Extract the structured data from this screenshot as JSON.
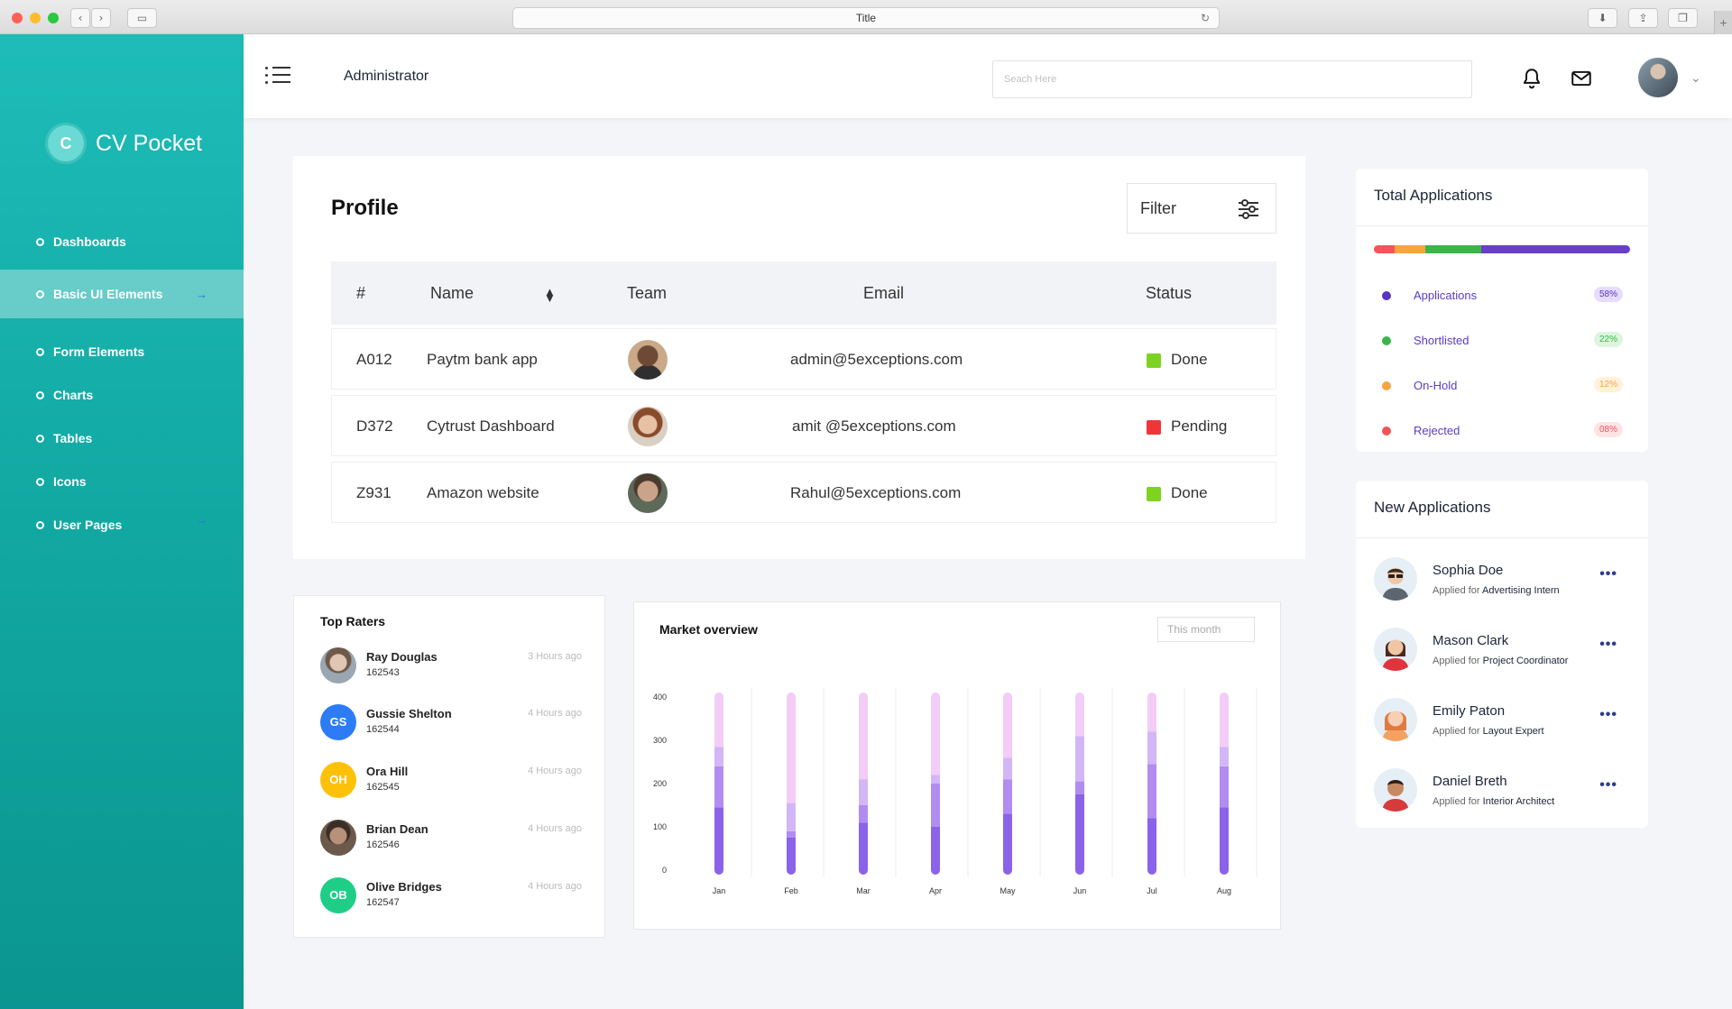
{
  "browser": {
    "title": "Title"
  },
  "sidebar": {
    "brand_letter": "C",
    "brand_name": "CV Pocket",
    "items": [
      {
        "label": "Dashboards"
      },
      {
        "label": "Basic UI Elements"
      },
      {
        "label": "Form Elements"
      },
      {
        "label": "Charts"
      },
      {
        "label": "Tables"
      },
      {
        "label": "Icons"
      },
      {
        "label": "User Pages"
      }
    ]
  },
  "header": {
    "title": "Administrator",
    "search_placeholder": "Seach Here"
  },
  "profile": {
    "title": "Profile",
    "filter_label": "Filter",
    "columns": [
      "#",
      "Name",
      "Team",
      "Email",
      "Status"
    ],
    "rows": [
      {
        "id": "A012",
        "name": "Paytm bank app",
        "email": "admin@5exceptions.com",
        "status": "Done",
        "status_color": "#7ed321"
      },
      {
        "id": "D372",
        "name": "Cytrust Dashboard",
        "email": "amit @5exceptions.com",
        "status": "Pending",
        "status_color": "#f0353a"
      },
      {
        "id": "Z931",
        "name": "Amazon website",
        "email": "Rahul@5exceptions.com",
        "status": "Done",
        "status_color": "#7ed321"
      }
    ]
  },
  "raters": {
    "title": "Top Raters",
    "items": [
      {
        "initials": "",
        "name": "Ray Douglas",
        "id": "162543",
        "time": "3 Hours ago",
        "color": "#9aa7b3"
      },
      {
        "initials": "GS",
        "name": "Gussie Shelton",
        "id": "162544",
        "time": "4 Hours ago",
        "color": "#2d7cf6"
      },
      {
        "initials": "OH",
        "name": "Ora Hill",
        "id": "162545",
        "time": "4 Hours ago",
        "color": "#ffc107"
      },
      {
        "initials": "",
        "name": "Brian Dean",
        "id": "162546",
        "time": "4 Hours ago",
        "color": "#6b5a4c"
      },
      {
        "initials": "OB",
        "name": "Olive Bridges",
        "id": "162547",
        "time": "4 Hours ago",
        "color": "#1fce86"
      }
    ]
  },
  "market": {
    "title": "Market overview",
    "period": "This month"
  },
  "chart_data": {
    "type": "bar",
    "stacked": true,
    "categories": [
      "Jan",
      "Feb",
      "Mar",
      "Apr",
      "May",
      "Jun",
      "Jul",
      "Aug"
    ],
    "ylim": [
      0,
      400
    ],
    "yticks": [
      0,
      100,
      200,
      300,
      400
    ],
    "series": [
      {
        "values": [
          145,
          75,
          110,
          100,
          130,
          175,
          120,
          145
        ],
        "color": "#8a63ea"
      },
      {
        "values": [
          95,
          15,
          40,
          100,
          80,
          30,
          125,
          95
        ],
        "color": "#b28cf0"
      },
      {
        "values": [
          45,
          65,
          60,
          20,
          50,
          105,
          75,
          45
        ],
        "color": "#d3b6f5"
      },
      {
        "values": [
          115,
          245,
          190,
          180,
          140,
          90,
          80,
          115
        ],
        "color": "#f3ccf7"
      }
    ]
  },
  "total_applications": {
    "title": "Total Applications",
    "bar": [
      {
        "pct": 8,
        "color": "#f2545b"
      },
      {
        "pct": 12,
        "color": "#f6a540"
      },
      {
        "pct": 22,
        "color": "#3bb54a"
      },
      {
        "pct": 58,
        "color": "#6a3fc8"
      }
    ],
    "items": [
      {
        "label": "Applications",
        "pct": "58%",
        "color": "#5b34c4",
        "badge_bg": "#e6dcff",
        "badge_fg": "#5b34c4"
      },
      {
        "label": "Shortlisted",
        "pct": "22%",
        "color": "#3bb54a",
        "badge_bg": "#ddf5df",
        "badge_fg": "#3bb54a"
      },
      {
        "label": "On-Hold",
        "pct": "12%",
        "color": "#f6a540",
        "badge_bg": "#fff1dc",
        "badge_fg": "#f6a540"
      },
      {
        "label": "Rejected",
        "pct": "08%",
        "color": "#f2545b",
        "badge_bg": "#ffe3e5",
        "badge_fg": "#f2545b"
      }
    ]
  },
  "new_applications": {
    "title": "New Applications",
    "applied_for_label": "Applied for",
    "items": [
      {
        "name": "Sophia Doe",
        "role": "Advertising Intern"
      },
      {
        "name": "Mason Clark",
        "role": "Project Coordinator"
      },
      {
        "name": "Emily Paton",
        "role": "Layout Expert"
      },
      {
        "name": "Daniel Breth",
        "role": "Interior Architect"
      }
    ]
  }
}
